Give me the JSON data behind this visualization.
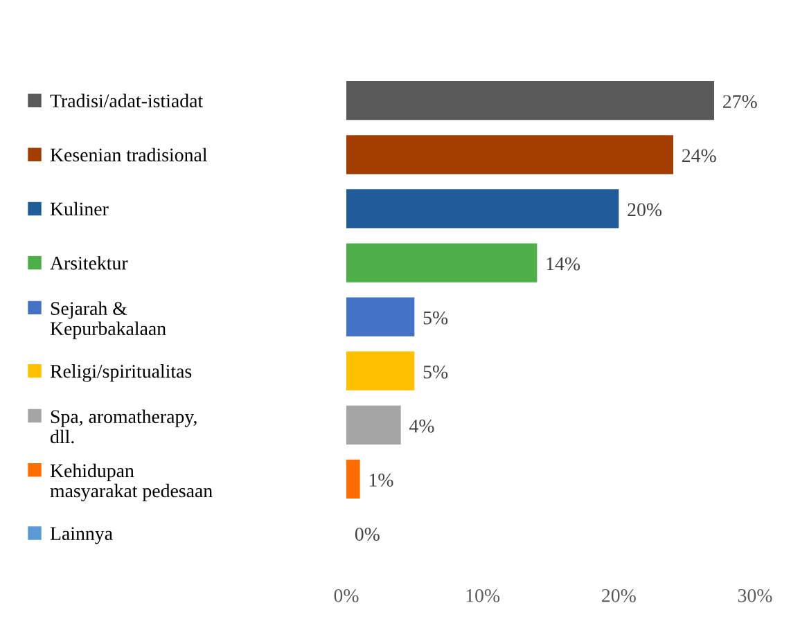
{
  "chart_data": {
    "type": "bar",
    "orientation": "horizontal",
    "categories": [
      "Tradisi/adat-istiadat",
      "Kesenian tradisional",
      "Kuliner",
      "Arsitektur",
      "Sejarah &\nKepurbakalaan",
      "Religi/spiritualitas",
      "Spa, aromatherapy,\ndll.",
      "Kehidupan\nmasyarakat pedesaan",
      "Lainnya"
    ],
    "values": [
      27,
      24,
      20,
      14,
      5,
      5,
      4,
      1,
      0
    ],
    "colors": [
      "#595959",
      "#a43e00",
      "#1f5c99",
      "#4caf47",
      "#4472c4",
      "#ffc000",
      "#a5a5a5",
      "#ff6d00",
      "#5b9bd5"
    ],
    "xlim": [
      0,
      30
    ],
    "xticks": [
      {
        "value": 0,
        "label": "0%"
      },
      {
        "value": 10,
        "label": "10%"
      },
      {
        "value": 20,
        "label": "20%"
      },
      {
        "value": 30,
        "label": "30%"
      }
    ],
    "value_labels": [
      "27%",
      "24%",
      "20%",
      "14%",
      "5%",
      "5%",
      "4%",
      "1%",
      "0%"
    ],
    "grid": false,
    "legend": false
  }
}
